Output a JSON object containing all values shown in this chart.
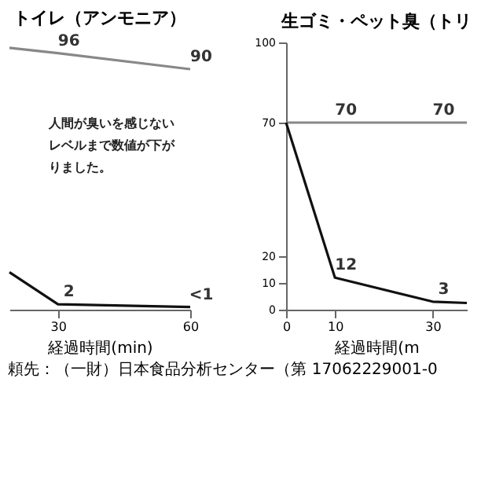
{
  "chart_data": [
    {
      "type": "line",
      "title": "トイレ（アンモニア）",
      "xlabel": "経過時間(min)",
      "xlim": [
        19,
        60
      ],
      "xticks": [
        30,
        60
      ],
      "ylim": [
        0,
        100
      ],
      "tick_labels": "x",
      "grid": false,
      "marker": "none",
      "line_style": "solid",
      "series": [
        {
          "color": "#888888",
          "x": [
            19,
            30,
            60
          ],
          "values": [
            98,
            96,
            90
          ],
          "value_labels": [
            null,
            "96",
            "90"
          ]
        },
        {
          "color": "#111111",
          "x": [
            19,
            30,
            60
          ],
          "values": [
            14,
            2,
            1
          ],
          "value_labels": [
            null,
            "2",
            "<1"
          ]
        }
      ],
      "annotations": [
        "人間が臭いを感じないレベルまで数値が下がりました。"
      ]
    },
    {
      "type": "line",
      "title": "生ゴミ・ペット臭（トリ",
      "xlabel": "経過時間(m",
      "xlim": [
        0,
        37
      ],
      "xticks": [
        0,
        10,
        30
      ],
      "ylim": [
        0,
        100
      ],
      "yticks": [
        0,
        10,
        20,
        70,
        100
      ],
      "grid": false,
      "marker": "none",
      "line_style": "solid",
      "series": [
        {
          "color": "#888888",
          "x": [
            0,
            10,
            30,
            37
          ],
          "values": [
            70,
            70,
            70,
            70
          ],
          "value_labels": [
            null,
            "70",
            "70",
            null
          ]
        },
        {
          "color": "#111111",
          "x": [
            0,
            10,
            30,
            37
          ],
          "values": [
            70,
            12,
            3,
            2.5
          ],
          "value_labels": [
            null,
            "12",
            "3",
            null
          ]
        }
      ],
      "annotations": [
        "頼先：（一財）日本食品分析センター（第 17062229001-0"
      ]
    }
  ]
}
